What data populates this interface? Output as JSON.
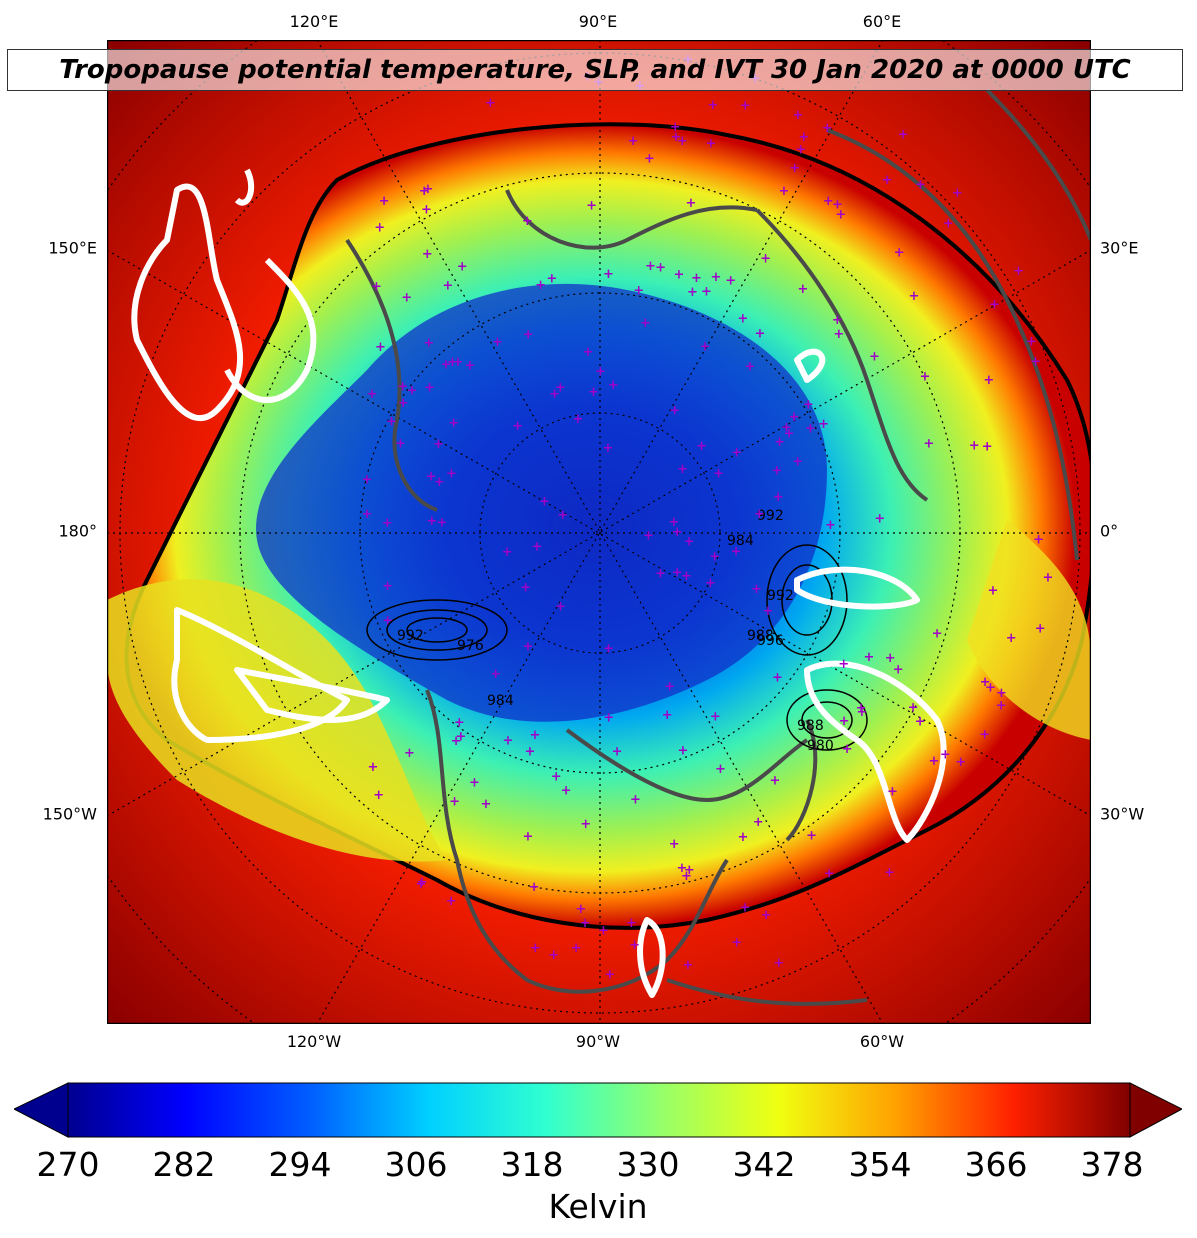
{
  "title": "Tropopause potential temperature, SLP, and IVT 30 Jan 2020 at 0000 UTC",
  "map": {
    "projection": "north-polar-stereographic",
    "central_longitude": -90,
    "fields": [
      "tropopause potential temperature (filled)",
      "SLP (black contours)",
      "IVT (white contours)"
    ],
    "lon_labels_top": [
      "120°E",
      "90°E",
      "60°E"
    ],
    "lon_labels_bottom": [
      "120°W",
      "90°W",
      "60°W"
    ],
    "lon_labels_left": [
      "150°E",
      "180°",
      "150°W"
    ],
    "lon_labels_right": [
      "30°E",
      "0°",
      "30°W"
    ],
    "slp_labels": [
      "984",
      "992",
      "992",
      "988",
      "996",
      "992",
      "976",
      "984",
      "988",
      "980"
    ],
    "colors": {
      "land_outline": "#4a4a4a",
      "ivt_contour": "#ffffff",
      "station_marker": "#a000c8",
      "slp_contour": "#000000"
    }
  },
  "colorbar": {
    "units": "Kelvin",
    "min": 270,
    "max": 378,
    "tick_labels": [
      "270",
      "282",
      "294",
      "306",
      "318",
      "330",
      "342",
      "354",
      "366",
      "378"
    ],
    "colormap": "jet",
    "extend": "both"
  }
}
